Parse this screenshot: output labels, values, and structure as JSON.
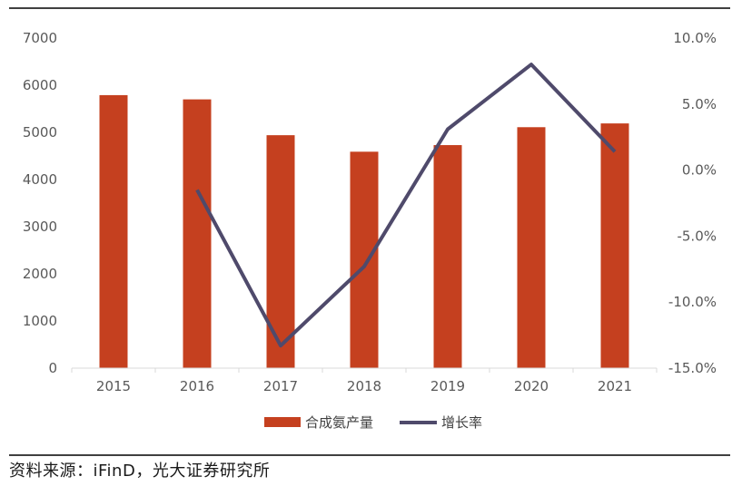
{
  "chart_data": {
    "type": "bar",
    "categories": [
      "2015",
      "2016",
      "2017",
      "2018",
      "2019",
      "2020",
      "2021"
    ],
    "series": [
      {
        "name": "合成氨产量",
        "type": "bar",
        "axis": "left",
        "color": "#c5401f",
        "values": [
          5790,
          5700,
          4940,
          4590,
          4730,
          5110,
          5190
        ]
      },
      {
        "name": "增长率",
        "type": "line",
        "axis": "right",
        "color": "#4f4a6b",
        "values": [
          null,
          -1.5,
          -13.3,
          -7.3,
          3.1,
          8.0,
          1.4
        ]
      }
    ],
    "y_left": {
      "min": 0,
      "max": 7000,
      "ticks": [
        "0",
        "1000",
        "2000",
        "3000",
        "4000",
        "5000",
        "6000",
        "7000"
      ]
    },
    "y_right": {
      "min": -15,
      "max": 10,
      "ticks": [
        "-15.0%",
        "-10.0%",
        "-5.0%",
        "0.0%",
        "5.0%",
        "10.0%"
      ]
    },
    "legend_position": "bottom"
  },
  "source_text": "资料来源：iFinD，光大证券研究所"
}
